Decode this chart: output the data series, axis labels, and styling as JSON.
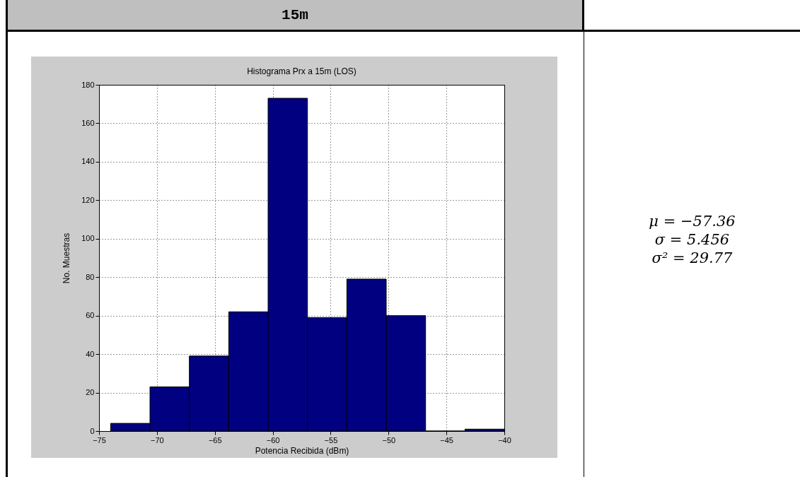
{
  "chart_data": {
    "type": "histogram",
    "title": "Histograma Prx a 15m (LOS)",
    "xlabel": "Potencia Recibida (dBm)",
    "ylabel": "No. Muestras",
    "bins": [
      -74.0,
      -70.6,
      -67.2,
      -63.8,
      -60.4,
      -57.0,
      -53.6,
      -50.2,
      -46.8,
      -43.4,
      -40.0
    ],
    "values": [
      4,
      23,
      39,
      62,
      173,
      59,
      79,
      60,
      0,
      1
    ],
    "color": "#000080",
    "xlim": [
      -75,
      -40
    ],
    "xticks": [
      -75,
      -70,
      -65,
      -60,
      -55,
      -50,
      -45,
      -40
    ],
    "ylim": [
      0,
      180
    ],
    "yticks": [
      0,
      20,
      40,
      60,
      80,
      100,
      120,
      140,
      160,
      180
    ],
    "grid": true,
    "annotations": [
      "15m",
      "μ = −57.36",
      "σ = 5.456",
      "σ² = 29.77"
    ]
  }
}
